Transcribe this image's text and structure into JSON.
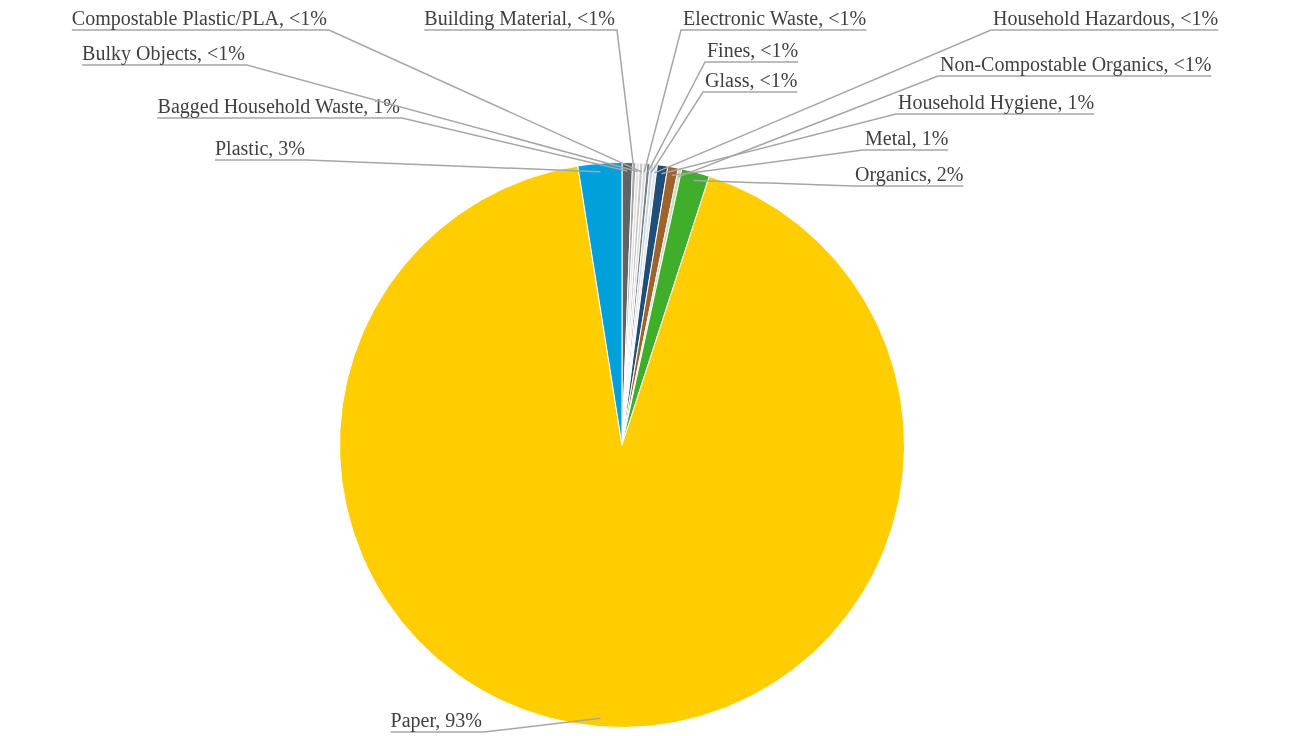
{
  "chart_data": {
    "type": "pie",
    "categories": [
      "Bagged Household Waste",
      "Building Material",
      "Bulky Objects",
      "Compostable Plastic/PLA",
      "Electronic Waste",
      "Fines",
      "Glass",
      "Household Hazardous",
      "Household Hygiene",
      "Metal",
      "Non-Compostable Organics",
      "Organics",
      "Paper",
      "Plastic"
    ],
    "values": [
      0.6,
      0.2,
      0.2,
      0.2,
      0.2,
      0.2,
      0.2,
      0.2,
      0.6,
      0.6,
      0.2,
      1.6,
      92.5,
      2.5
    ],
    "colors": [
      "#5f6366",
      "#a5a5a5",
      "#e2e2e2",
      "#c8c8c8",
      "#d6dce4",
      "#7f7f7f",
      "#bdd7ee",
      "#e7e6e6",
      "#1f4e79",
      "#a0622d",
      "#c5e0b4",
      "#3fae2a",
      "#ffcd00",
      "#00a0dc"
    ],
    "value_labels": [
      "1%",
      "<1%",
      "<1%",
      "<1%",
      "<1%",
      "<1%",
      "<1%",
      "<1%",
      "1%",
      "1%",
      "<1%",
      "2%",
      "93%",
      "3%"
    ],
    "legend": false
  }
}
